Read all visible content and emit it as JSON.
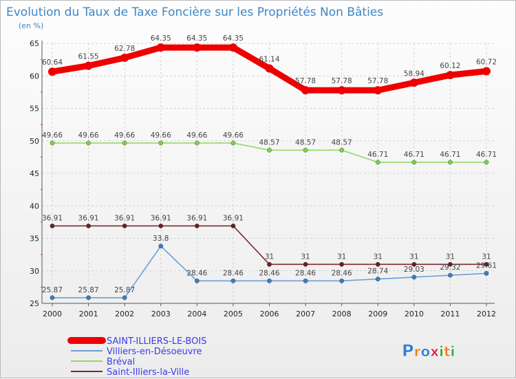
{
  "chart_data": {
    "type": "line",
    "title": "Evolution du Taux de Taxe Foncière sur les Propriétés Non Bâties",
    "unit_label": "(en %)",
    "x": [
      "2000",
      "2001",
      "2002",
      "2003",
      "2004",
      "2005",
      "2006",
      "2007",
      "2008",
      "2009",
      "2010",
      "2011",
      "2012"
    ],
    "ylim": [
      25,
      65
    ],
    "yticks": [
      25,
      30,
      35,
      40,
      45,
      50,
      55,
      60,
      65
    ],
    "grid": true,
    "legend_position": "bottom-left",
    "series": [
      {
        "name": "SAINT-ILLIERS-LE-BOIS",
        "color": "#ee0000",
        "marker": "#ee0000",
        "values": [
          60.64,
          61.55,
          62.78,
          64.35,
          64.35,
          64.35,
          61.14,
          57.78,
          57.78,
          57.78,
          58.94,
          60.12,
          60.72
        ],
        "labels": [
          "60.64",
          "61.55",
          "62.78",
          "64.35",
          "64.35",
          "64.35",
          "61.14",
          "57.78",
          "57.78",
          "57.78",
          "58.94",
          "60.12",
          "60.72"
        ]
      },
      {
        "name": "Villiers-en-Désoeuvre",
        "color": "#6b9fd4",
        "marker": "#3a7cc2",
        "values": [
          25.87,
          25.87,
          25.87,
          33.8,
          28.46,
          28.46,
          28.46,
          28.46,
          28.46,
          28.74,
          29.03,
          29.32,
          29.61
        ],
        "labels": [
          "25.87",
          "25.87",
          "25.87",
          "33.8",
          "28.46",
          "28.46",
          "28.46",
          "28.46",
          "28.46",
          "28.74",
          "29.03",
          "29.32",
          "29.61"
        ]
      },
      {
        "name": "Bréval",
        "color": "#93d86a",
        "marker": "#7ccf4a",
        "values": [
          49.66,
          49.66,
          49.66,
          49.66,
          49.66,
          49.66,
          48.57,
          48.57,
          48.57,
          46.71,
          46.71,
          46.71,
          46.71
        ],
        "labels": [
          "49.66",
          "49.66",
          "49.66",
          "49.66",
          "49.66",
          "49.66",
          "48.57",
          "48.57",
          "48.57",
          "46.71",
          "46.71",
          "46.71",
          "46.71"
        ]
      },
      {
        "name": "Saint-Illiers-la-Ville",
        "color": "#7a2a30",
        "marker": "#6a1e24",
        "values": [
          36.91,
          36.91,
          36.91,
          36.91,
          36.91,
          36.91,
          31,
          31,
          31,
          31,
          31,
          31,
          31
        ],
        "labels": [
          "36.91",
          "36.91",
          "36.91",
          "36.91",
          "36.91",
          "36.91",
          "31",
          "31",
          "31",
          "31",
          "31",
          "31",
          "31"
        ]
      }
    ]
  },
  "logo": {
    "text": "Proxiti",
    "colors": [
      "#2f7fd0",
      "#f07d16",
      "#2f7fd0",
      "#e5244a",
      "#3aa53a",
      "#f07d16",
      "#3aa53a"
    ]
  }
}
